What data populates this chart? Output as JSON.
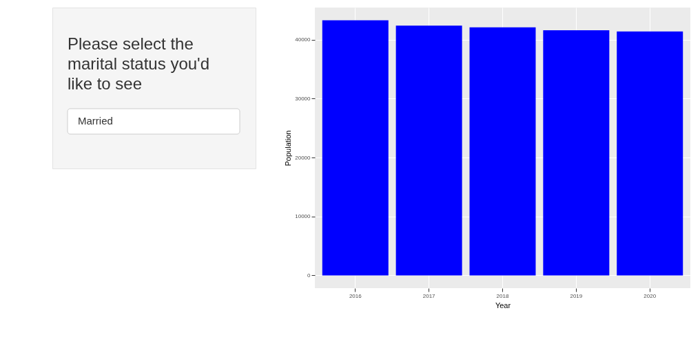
{
  "chart_data": [
    {
      "type": "other",
      "title": "Please select the marital status you'd like to see",
      "annotations": [
        "Married"
      ]
    },
    {
      "type": "bar",
      "xlabel": "Year",
      "ylabel": "Population",
      "categories": [
        "2016",
        "2017",
        "2018",
        "2019",
        "2020"
      ],
      "values": [
        43300,
        42400,
        42100,
        41600,
        41400
      ],
      "color": "#0000ff",
      "ylim": [
        -2165,
        45465
      ],
      "yticks": [
        0,
        10000,
        20000,
        30000,
        40000
      ],
      "grid": true
    }
  ]
}
